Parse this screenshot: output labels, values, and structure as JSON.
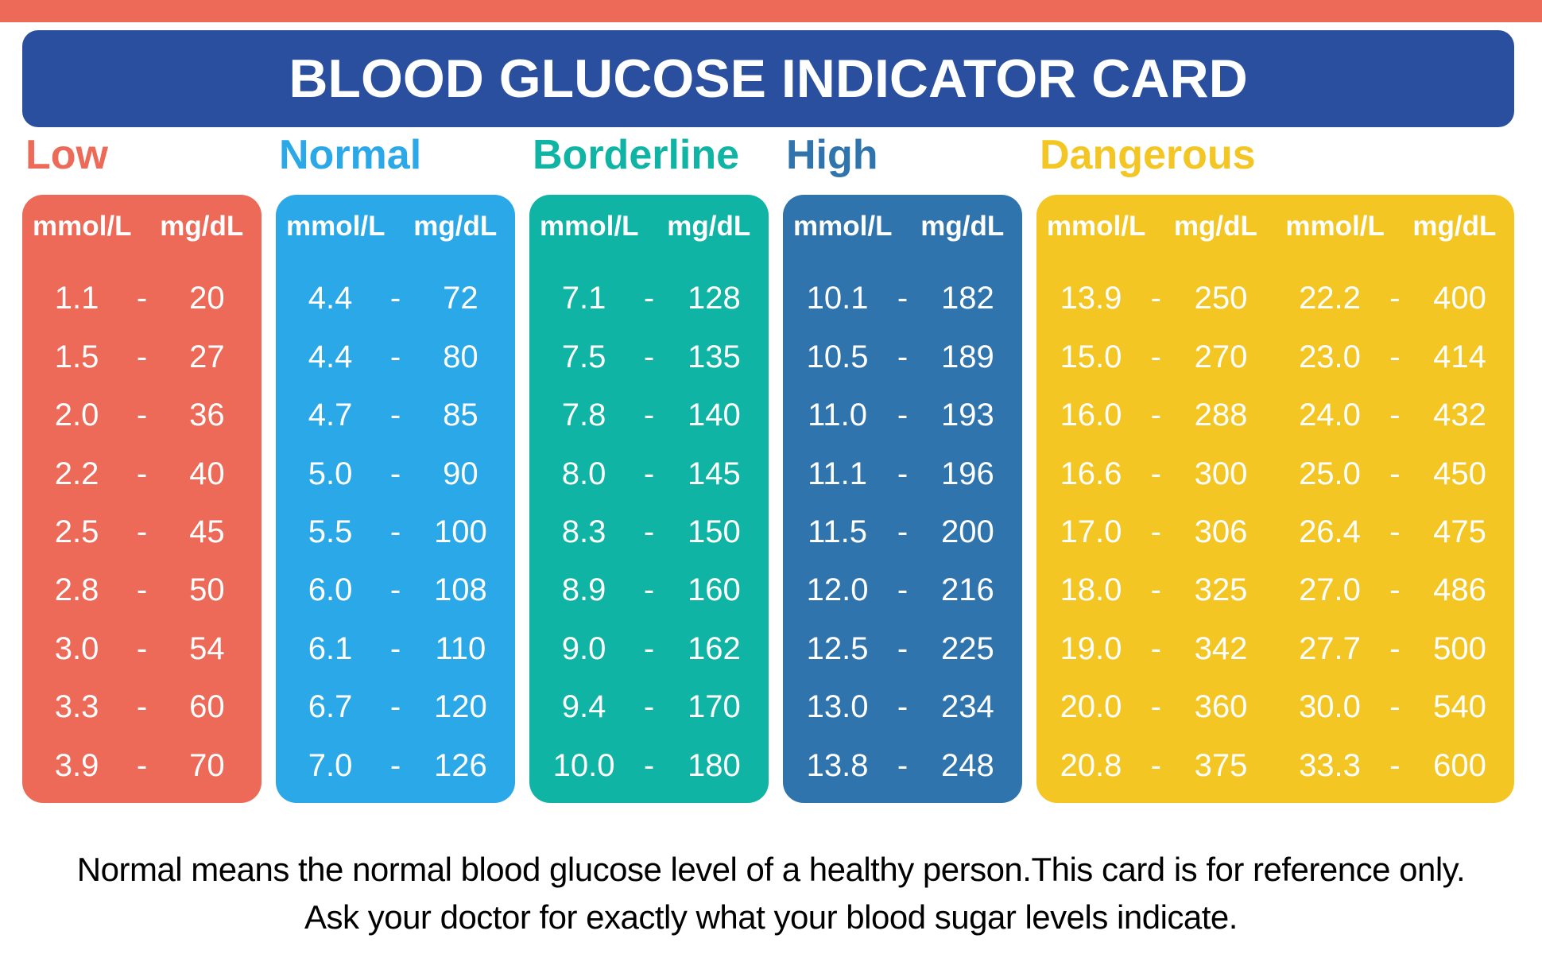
{
  "title": "BLOOD GLUCOSE INDICATOR CARD",
  "colors": {
    "top_strip": "#ED6A58",
    "title_bar": "#2A4F9E",
    "background": "#FFFFFF",
    "text_on_color": "#FFFFFF",
    "footer_text": "#000000"
  },
  "categories": [
    {
      "label": "Low",
      "color": "#ED6A58",
      "unit_headers": [
        "mmol/L",
        "mg/dL"
      ],
      "rows": [
        [
          "1.1",
          "20"
        ],
        [
          "1.5",
          "27"
        ],
        [
          "2.0",
          "36"
        ],
        [
          "2.2",
          "40"
        ],
        [
          "2.5",
          "45"
        ],
        [
          "2.8",
          "50"
        ],
        [
          "3.0",
          "54"
        ],
        [
          "3.3",
          "60"
        ],
        [
          "3.9",
          "70"
        ]
      ]
    },
    {
      "label": "Normal",
      "color": "#2BA8E8",
      "unit_headers": [
        "mmol/L",
        "mg/dL"
      ],
      "rows": [
        [
          "4.4",
          "72"
        ],
        [
          "4.4",
          "80"
        ],
        [
          "4.7",
          "85"
        ],
        [
          "5.0",
          "90"
        ],
        [
          "5.5",
          "100"
        ],
        [
          "6.0",
          "108"
        ],
        [
          "6.1",
          "110"
        ],
        [
          "6.7",
          "120"
        ],
        [
          "7.0",
          "126"
        ]
      ]
    },
    {
      "label": "Borderline",
      "color": "#10B4A4",
      "unit_headers": [
        "mmol/L",
        "mg/dL"
      ],
      "rows": [
        [
          "7.1",
          "128"
        ],
        [
          "7.5",
          "135"
        ],
        [
          "7.8",
          "140"
        ],
        [
          "8.0",
          "145"
        ],
        [
          "8.3",
          "150"
        ],
        [
          "8.9",
          "160"
        ],
        [
          "9.0",
          "162"
        ],
        [
          "9.4",
          "170"
        ],
        [
          "10.0",
          "180"
        ]
      ]
    },
    {
      "label": "High",
      "color": "#3074AE",
      "unit_headers": [
        "mmol/L",
        "mg/dL"
      ],
      "rows": [
        [
          "10.1",
          "182"
        ],
        [
          "10.5",
          "189"
        ],
        [
          "11.0",
          "193"
        ],
        [
          "11.1",
          "196"
        ],
        [
          "11.5",
          "200"
        ],
        [
          "12.0",
          "216"
        ],
        [
          "12.5",
          "225"
        ],
        [
          "13.0",
          "234"
        ],
        [
          "13.8",
          "248"
        ]
      ]
    },
    {
      "label": "Dangerous",
      "color": "#F4C623",
      "unit_headers": [
        "mmol/L",
        "mg/dL",
        "mmol/L",
        "mg/dL"
      ],
      "rows": [
        [
          "13.9",
          "250",
          "22.2",
          "400"
        ],
        [
          "15.0",
          "270",
          "23.0",
          "414"
        ],
        [
          "16.0",
          "288",
          "24.0",
          "432"
        ],
        [
          "16.6",
          "300",
          "25.0",
          "450"
        ],
        [
          "17.0",
          "306",
          "26.4",
          "475"
        ],
        [
          "18.0",
          "325",
          "27.0",
          "486"
        ],
        [
          "19.0",
          "342",
          "27.7",
          "500"
        ],
        [
          "20.0",
          "360",
          "30.0",
          "540"
        ],
        [
          "20.8",
          "375",
          "33.3",
          "600"
        ]
      ]
    }
  ],
  "footer": {
    "line1": "Normal means the normal blood glucose level of a healthy person.This card is for reference only.",
    "line2": "Ask your doctor for exactly what your blood sugar levels indicate."
  }
}
